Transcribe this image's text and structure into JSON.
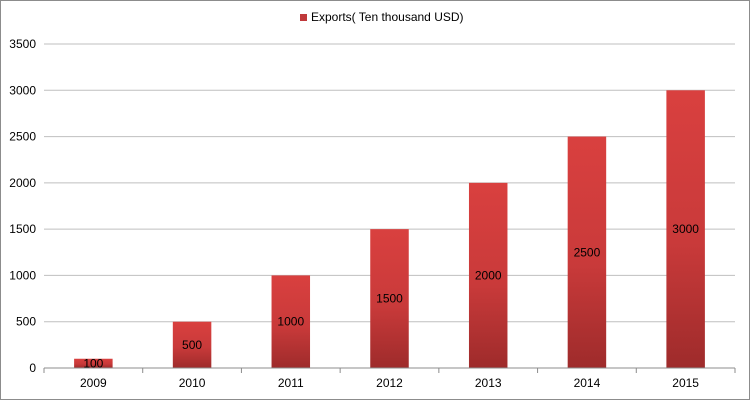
{
  "chart_data": {
    "type": "bar",
    "categories": [
      "2009",
      "2010",
      "2011",
      "2012",
      "2013",
      "2014",
      "2015"
    ],
    "series": [
      {
        "name": "Exports( Ten thousand USD)",
        "values": [
          100,
          500,
          1000,
          1500,
          2000,
          2500,
          3000
        ],
        "color": "#c0393b"
      }
    ],
    "data_labels": [
      "100",
      "500",
      "1000",
      "1500",
      "2000",
      "2500",
      "3000"
    ],
    "y_ticks": [
      "0",
      "500",
      "1000",
      "1500",
      "2000",
      "2500",
      "3000",
      "3500"
    ],
    "ylim": [
      0,
      3500
    ],
    "grid": true,
    "legend_position": "top-center"
  }
}
